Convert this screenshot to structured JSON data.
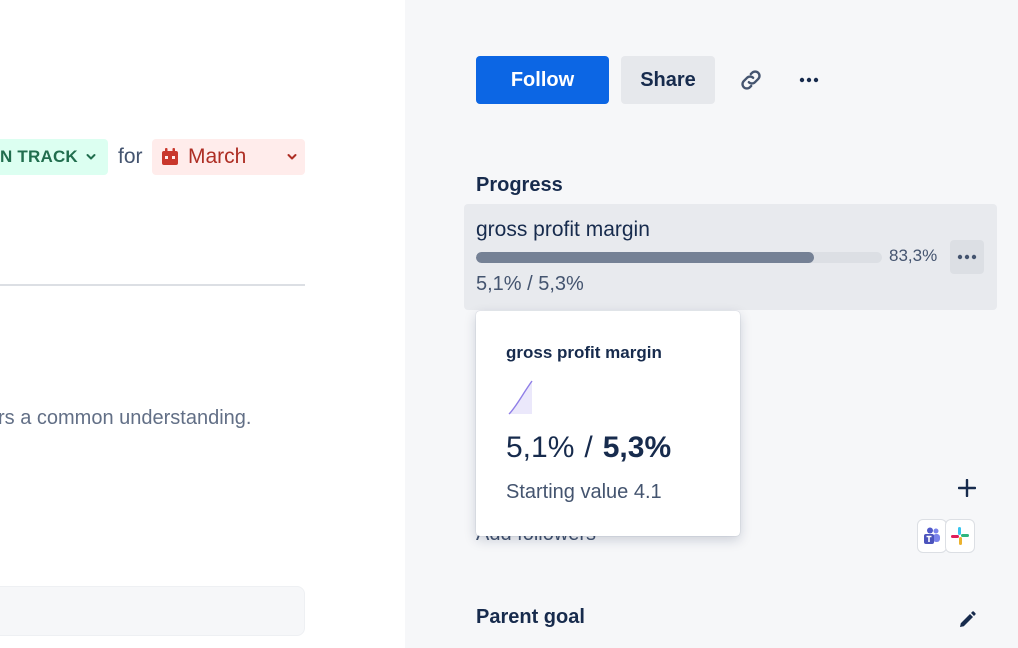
{
  "left": {
    "status_label": "N TRACK",
    "for_label": "for",
    "month_label": "March",
    "description_text": "rs a common understanding."
  },
  "header": {
    "follow_label": "Follow",
    "share_label": "Share",
    "link_icon": "link-icon",
    "more_icon": "more-horizontal-icon"
  },
  "progress": {
    "heading": "Progress",
    "metric": {
      "name": "gross profit margin",
      "current": "5,1%",
      "target": "5,3%",
      "values_text": "5,1% / 5,3%",
      "percent_text": "83,3%",
      "progress_fraction": 0.833
    }
  },
  "popover": {
    "title": "gross profit margin",
    "current": "5,1%",
    "separator": "/",
    "target": "5,3%",
    "starting_value": "Starting value 4.1"
  },
  "followers": {
    "label": "Add followers",
    "plus_icon": "plus-icon",
    "apps": [
      "microsoft-teams-icon",
      "slack-icon"
    ]
  },
  "parent_goal": {
    "heading": "Parent goal",
    "edit_icon": "pencil-icon"
  },
  "colors": {
    "primary": "#0c66e4",
    "status_bg": "#dcfff1",
    "status_text": "#216e4e",
    "month_bg": "#ffeceb",
    "month_text": "#ae2e24",
    "bar_fill": "#758195"
  }
}
